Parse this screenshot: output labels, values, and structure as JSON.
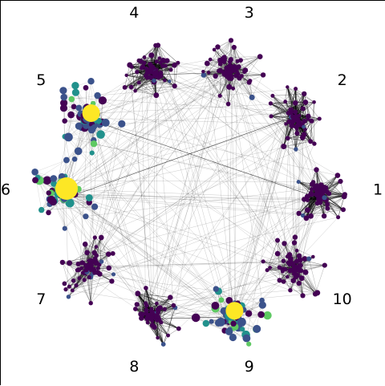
{
  "figure": {
    "type": "network-graph",
    "layout": "clustered-ring",
    "edge_color": "#000000",
    "node_colormap": "viridis",
    "colormap_stops": [
      "#440154",
      "#3b528b",
      "#21918c",
      "#5ec962",
      "#fde725"
    ]
  },
  "clusters": [
    {
      "label": "1",
      "angle_deg": 0,
      "edge_density": "dense",
      "dominant_color": "#440154"
    },
    {
      "label": "2",
      "angle_deg": 36,
      "edge_density": "dense",
      "dominant_color": "#440154"
    },
    {
      "label": "3",
      "angle_deg": 72,
      "edge_density": "medium",
      "dominant_color": "#440154"
    },
    {
      "label": "4",
      "angle_deg": 108,
      "edge_density": "dense",
      "dominant_color": "#440154"
    },
    {
      "label": "5",
      "angle_deg": 144,
      "edge_density": "light",
      "dominant_color": "#3b528b",
      "hub": true
    },
    {
      "label": "6",
      "angle_deg": 180,
      "edge_density": "light",
      "dominant_color": "#21918c",
      "hub": true
    },
    {
      "label": "7",
      "angle_deg": 216,
      "edge_density": "medium",
      "dominant_color": "#440154"
    },
    {
      "label": "8",
      "angle_deg": 252,
      "edge_density": "dense",
      "dominant_color": "#440154"
    },
    {
      "label": "9",
      "angle_deg": 288,
      "edge_density": "light",
      "dominant_color": "#3b528b",
      "hub": true
    },
    {
      "label": "10",
      "angle_deg": 324,
      "edge_density": "medium",
      "dominant_color": "#440154"
    }
  ]
}
